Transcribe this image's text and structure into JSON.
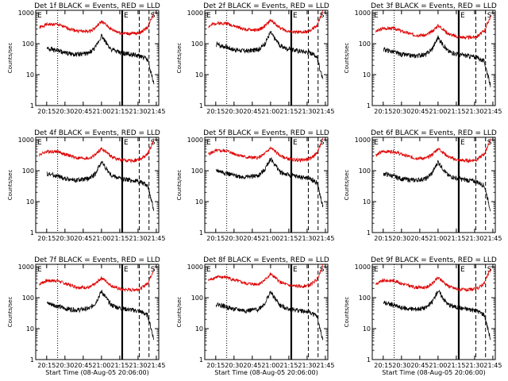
{
  "figure": {
    "colors": {
      "events": "#000000",
      "lld": "#dd0000",
      "axes": "#000000",
      "background": "#ffffff"
    },
    "shared": {
      "ylabel": "Counts/sec",
      "xlabel": "Start Time (08-Aug-05 20:06:00)",
      "yticks": [
        1,
        10,
        100,
        1000
      ],
      "ytick_labels": [
        "1",
        "10",
        "100",
        "1000"
      ],
      "xticks": [
        "20:15",
        "20:30",
        "20:45",
        "21:00",
        "21:15",
        "21:30",
        "21:45"
      ],
      "xrange": [
        "20:06",
        "21:47"
      ],
      "ylim": [
        1,
        1200
      ],
      "yscale": "log",
      "markers": {
        "dotted": "20:24",
        "thick_solid": "21:17",
        "dashed": [
          "21:31",
          "21:39"
        ],
        "letters": [
          "E",
          "E",
          "S"
        ]
      }
    },
    "panels": [
      {
        "title": "Det 1f BLACK = Events, RED = LLD",
        "show_xlabel": false
      },
      {
        "title": "Det 2f BLACK = Events, RED = LLD",
        "show_xlabel": false
      },
      {
        "title": "Det 3f BLACK = Events, RED = LLD",
        "show_xlabel": false
      },
      {
        "title": "Det 4f BLACK = Events, RED = LLD",
        "show_xlabel": false
      },
      {
        "title": "Det 5f BLACK = Events, RED = LLD",
        "show_xlabel": false
      },
      {
        "title": "Det 6f BLACK = Events, RED = LLD",
        "show_xlabel": false
      },
      {
        "title": "Det 7f BLACK = Events, RED = LLD",
        "show_xlabel": true
      },
      {
        "title": "Det 8f BLACK = Events, RED = LLD",
        "show_xlabel": true
      },
      {
        "title": "Det 9f BLACK = Events, RED = LLD",
        "show_xlabel": true
      }
    ]
  },
  "chart_data": {
    "type": "line",
    "yscale": "log",
    "x": [
      "20:09",
      "20:15",
      "20:24",
      "20:30",
      "20:40",
      "20:50",
      "20:55",
      "21:00",
      "21:03",
      "21:08",
      "21:13",
      "21:17",
      "21:25",
      "21:32",
      "21:38",
      "21:43"
    ],
    "series": [
      {
        "name": "Events",
        "values": [
          null,
          75,
          60,
          50,
          45,
          50,
          75,
          180,
          120,
          65,
          55,
          50,
          45,
          40,
          30,
          5
        ]
      },
      {
        "name": "LLD",
        "values": [
          330,
          420,
          420,
          340,
          260,
          250,
          330,
          520,
          430,
          290,
          240,
          220,
          210,
          230,
          350,
          1000
        ]
      }
    ]
  }
}
